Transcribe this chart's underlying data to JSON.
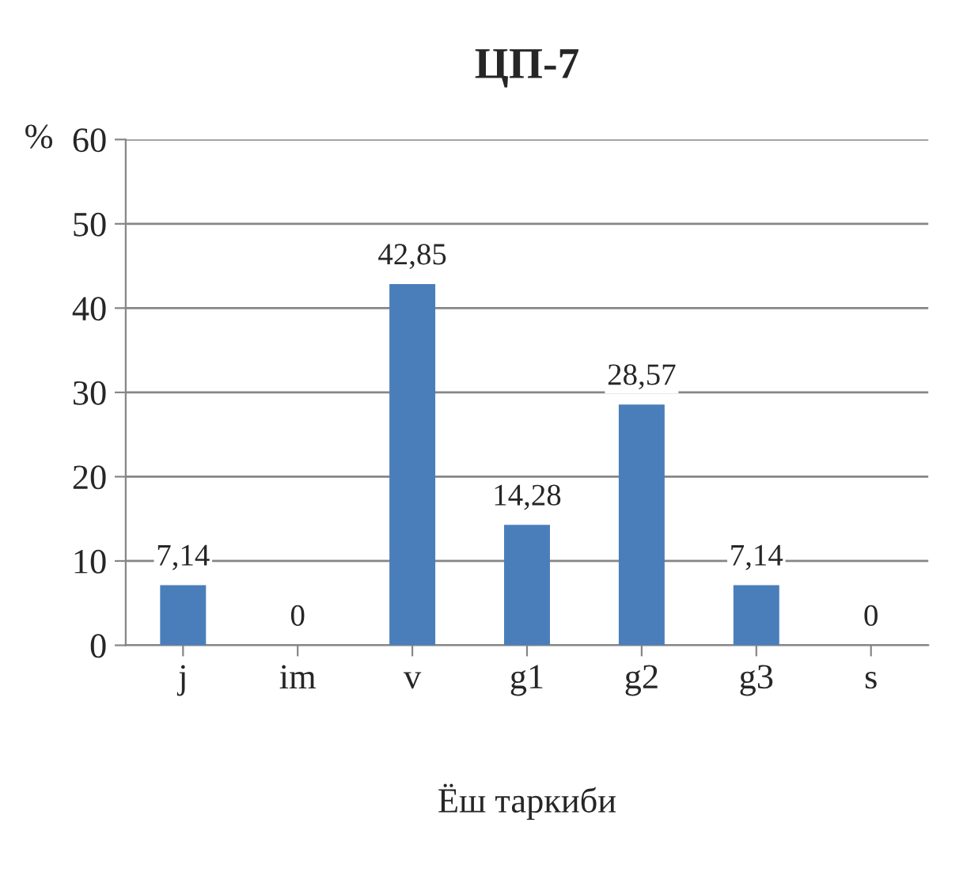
{
  "chart_data": {
    "type": "bar",
    "title": "ЦП-7",
    "xlabel": "Ёш таркиби",
    "ylabel": "%",
    "categories": [
      "j",
      "im",
      "v",
      "g1",
      "g2",
      "g3",
      "s"
    ],
    "values": [
      7.14,
      0,
      42.85,
      14.28,
      28.57,
      7.14,
      0
    ],
    "value_labels": [
      "7,14",
      "0",
      "42,85",
      "14,28",
      "28,57",
      "7,14",
      "0"
    ],
    "color": "#4a7ebb",
    "ylim": [
      0,
      60
    ],
    "yticks": [
      0,
      10,
      20,
      30,
      40,
      50,
      60
    ],
    "grid": "y",
    "legend": false
  }
}
